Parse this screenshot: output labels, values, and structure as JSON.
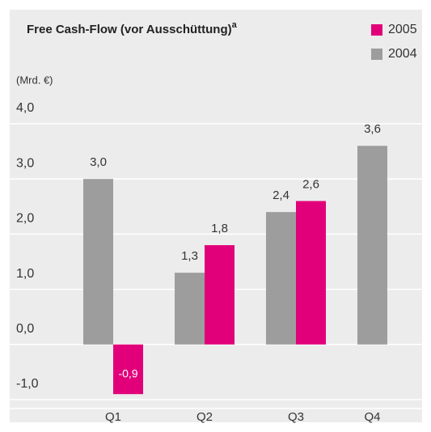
{
  "chart_data": {
    "type": "bar",
    "title": "Free Cash-Flow (vor Ausschüttung)",
    "title_note": "a",
    "y_label": "(Mrd. €)",
    "categories": [
      "Q1",
      "Q2",
      "Q3",
      "Q4"
    ],
    "series": [
      {
        "name": "2004",
        "color": "#9d9d9d",
        "values": [
          3.0,
          1.3,
          2.4,
          3.6
        ],
        "value_labels": [
          "3,0",
          "1,3",
          "2,4",
          "3,6"
        ]
      },
      {
        "name": "2005",
        "color": "#e2007a",
        "values": [
          -0.9,
          1.8,
          2.6,
          null
        ],
        "value_labels": [
          "-0,9",
          "1,8",
          "2,6",
          null
        ]
      }
    ],
    "legend_order": [
      1,
      0
    ],
    "ylim": [
      -1,
      4
    ],
    "yticks": [
      {
        "value": -1,
        "label": "-1,0"
      },
      {
        "value": 0,
        "label": "0,0"
      },
      {
        "value": 1,
        "label": "1,0"
      },
      {
        "value": 2,
        "label": "2,0"
      },
      {
        "value": 3,
        "label": "3,0"
      },
      {
        "value": 4,
        "label": "4,0"
      }
    ],
    "grid": true
  }
}
